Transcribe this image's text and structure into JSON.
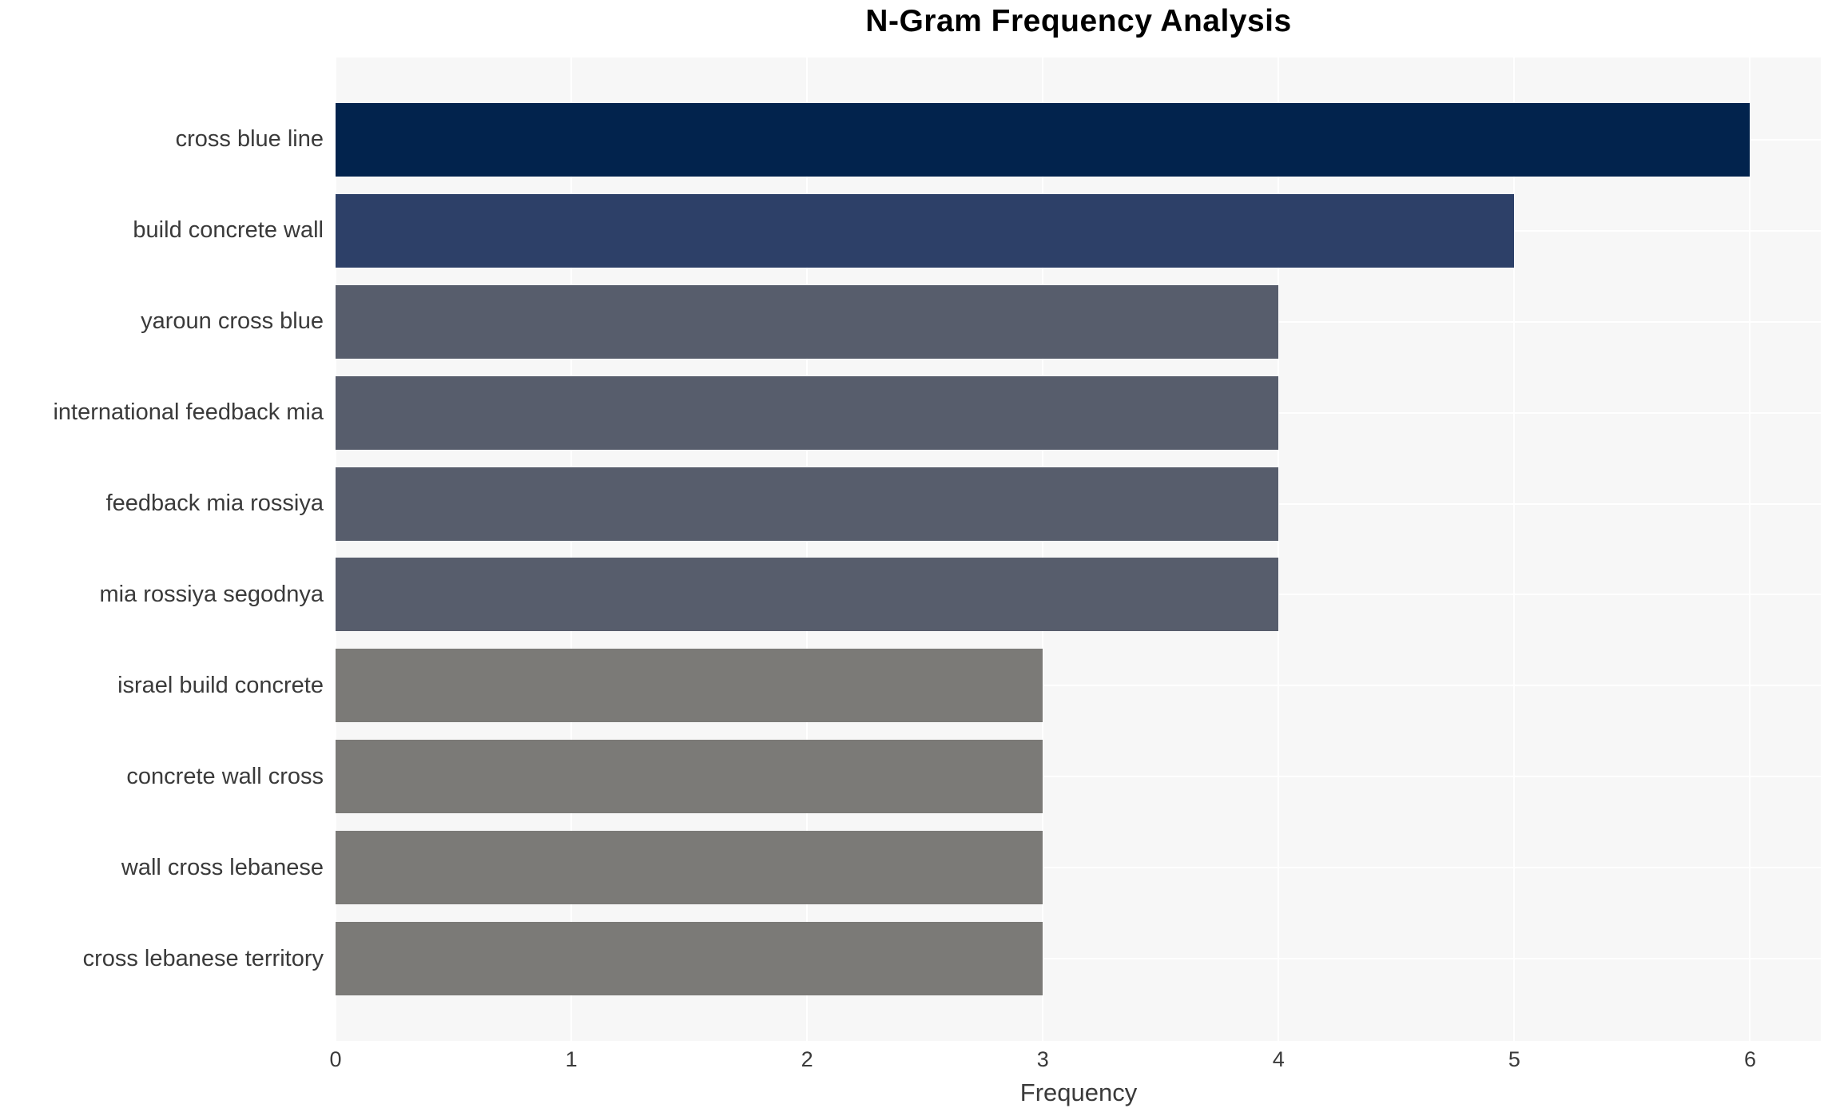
{
  "chart_data": {
    "type": "bar",
    "orientation": "horizontal",
    "title": "N-Gram Frequency Analysis",
    "xlabel": "Frequency",
    "ylabel": "",
    "categories": [
      "cross blue line",
      "build concrete wall",
      "yaroun cross blue",
      "international feedback mia",
      "feedback mia rossiya",
      "mia rossiya segodnya",
      "israel build concrete",
      "concrete wall cross",
      "wall cross lebanese",
      "cross lebanese territory"
    ],
    "values": [
      6,
      5,
      4,
      4,
      4,
      4,
      3,
      3,
      3,
      3
    ],
    "bar_colors": [
      "#02234d",
      "#2d4068",
      "#575d6c",
      "#575d6c",
      "#575d6c",
      "#575d6c",
      "#7b7a77",
      "#7b7a77",
      "#7b7a77",
      "#7b7a77"
    ],
    "xticks": [
      0,
      1,
      2,
      3,
      4,
      5,
      6
    ],
    "xlim": [
      0,
      6.3
    ],
    "grid": "white gridlines on light-gray panel",
    "plot_bg": "#f7f7f7",
    "text_color": "#3a3a3a",
    "legend": "none"
  }
}
